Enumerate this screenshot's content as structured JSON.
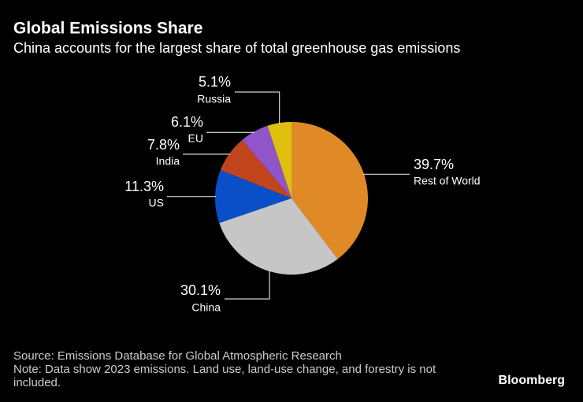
{
  "chart_data": {
    "type": "pie",
    "title": "Global Emissions Share",
    "subtitle": "China accounts for the largest share of total greenhouse gas emissions",
    "categories": [
      "Rest of World",
      "China",
      "US",
      "India",
      "EU",
      "Russia"
    ],
    "values": [
      39.7,
      30.1,
      11.3,
      7.8,
      6.1,
      5.1
    ],
    "value_labels": [
      "39.7%",
      "30.1%",
      "11.3%",
      "7.8%",
      "6.1%",
      "5.1%"
    ],
    "colors": [
      "#e08a27",
      "#c6c6c6",
      "#0a4fc8",
      "#c0451d",
      "#8f55c9",
      "#dfc00e"
    ],
    "source": "Source: Emissions Database for Global Atmospheric Research",
    "note": "Note: Data show 2023 emissions. Land use, land-use change, and forestry is not included.",
    "brand": "Bloomberg"
  }
}
